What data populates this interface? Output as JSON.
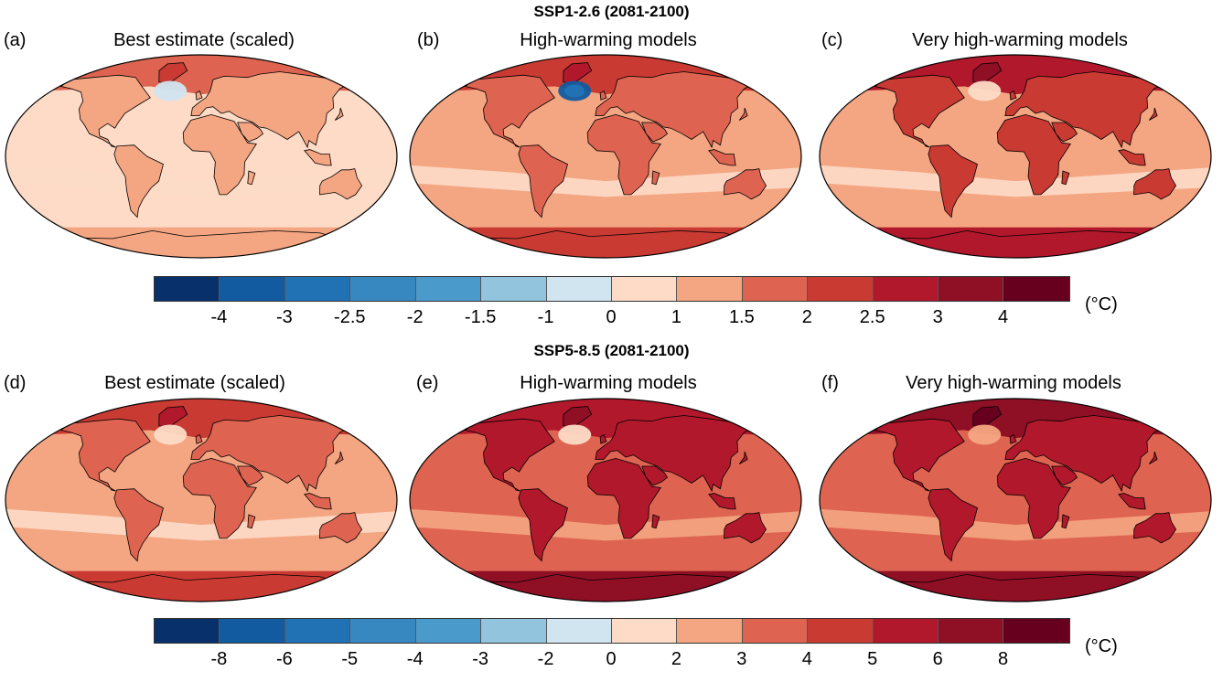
{
  "colors": [
    "#08306b",
    "#135ba0",
    "#2171b5",
    "#3787c0",
    "#4a9bcc",
    "#92c4de",
    "#d1e5f0",
    "#fddbc7",
    "#f4a582",
    "#de6451",
    "#c93a33",
    "#b2182b",
    "#8f0f25",
    "#67001f"
  ],
  "sections": [
    {
      "title": "SSP1-2.6 (2081-2100)",
      "panels": [
        {
          "letter": "(a)",
          "title": "Best estimate (scaled)",
          "ocean": 7,
          "land": 8,
          "arctic": 10,
          "south": 8,
          "nat": 6
        },
        {
          "letter": "(b)",
          "title": "High-warming models",
          "ocean": 8,
          "land": 9,
          "arctic": 11,
          "south": 10,
          "nat": 1
        },
        {
          "letter": "(c)",
          "title": "Very high-warming models",
          "ocean": 8,
          "land": 10,
          "arctic": 12,
          "south": 11,
          "nat": 7
        }
      ],
      "colorbar_ticks": [
        "-4",
        "-3",
        "-2.5",
        "-2",
        "-1.5",
        "-1",
        "0",
        "1",
        "1.5",
        "2",
        "2.5",
        "3",
        "4"
      ],
      "unit": "(°C)"
    },
    {
      "title": "SSP5-8.5 (2081-2100)",
      "panels": [
        {
          "letter": "(d)",
          "title": "Best estimate (scaled)",
          "ocean": 8,
          "land": 9,
          "arctic": 11,
          "south": 10,
          "nat": 7
        },
        {
          "letter": "(e)",
          "title": "High-warming models",
          "ocean": 9,
          "land": 11,
          "arctic": 12,
          "south": 12,
          "nat": 7
        },
        {
          "letter": "(f)",
          "title": "Very high-warming models",
          "ocean": 9,
          "land": 11,
          "arctic": 13,
          "south": 12,
          "nat": 8
        }
      ],
      "colorbar_ticks": [
        "-8",
        "-6",
        "-5",
        "-4",
        "-3",
        "-2",
        "0",
        "2",
        "3",
        "4",
        "5",
        "6",
        "8"
      ],
      "unit": "(°C)"
    }
  ]
}
